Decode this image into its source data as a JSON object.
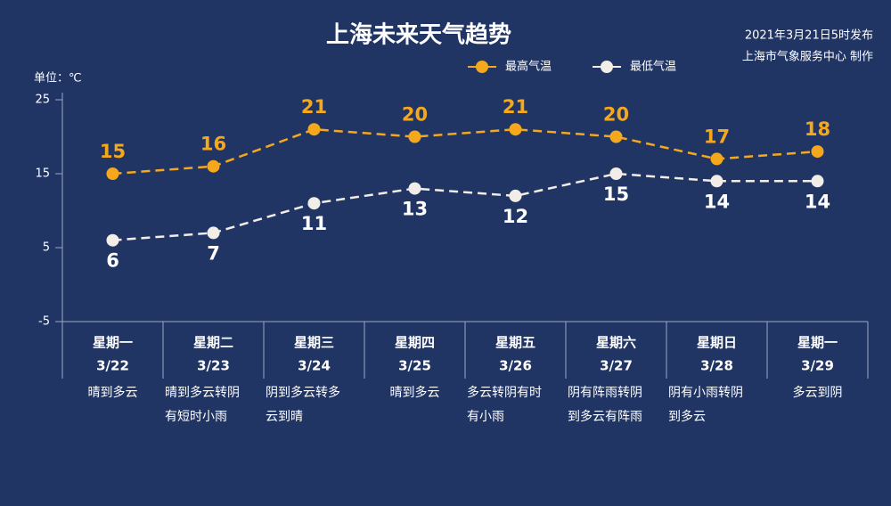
{
  "chart_data": {
    "type": "line",
    "title": "上海未来天气趋势",
    "publish_time": "2021年3月21日5时发布",
    "producer": "上海市气象服务中心 制作",
    "y_label": "单位：℃",
    "categories": [
      "星期一",
      "星期二",
      "星期三",
      "星期四",
      "星期五",
      "星期六",
      "星期日",
      "星期一"
    ],
    "dates": [
      "3/22",
      "3/23",
      "3/24",
      "3/25",
      "3/26",
      "3/27",
      "3/28",
      "3/29"
    ],
    "weather": [
      [
        "晴到多云"
      ],
      [
        "晴到多云转阴",
        "有短时小雨"
      ],
      [
        "阴到多云转多",
        "云到晴"
      ],
      [
        "晴到多云"
      ],
      [
        "多云转阴有时",
        "有小雨"
      ],
      [
        "阴有阵雨转阴",
        "到多云有阵雨"
      ],
      [
        "阴有小雨转阴",
        "到多云"
      ],
      [
        "多云到阴"
      ]
    ],
    "series": [
      {
        "name": "最高气温",
        "color": "#f5a81c",
        "values": [
          15,
          16,
          21,
          20,
          21,
          20,
          17,
          18
        ]
      },
      {
        "name": "最低气温",
        "color": "#f2ede6",
        "values": [
          6,
          7,
          11,
          13,
          12,
          15,
          14,
          14
        ]
      }
    ],
    "ylim": [
      -5,
      25
    ],
    "yticks": [
      -5,
      5,
      15,
      25
    ]
  }
}
